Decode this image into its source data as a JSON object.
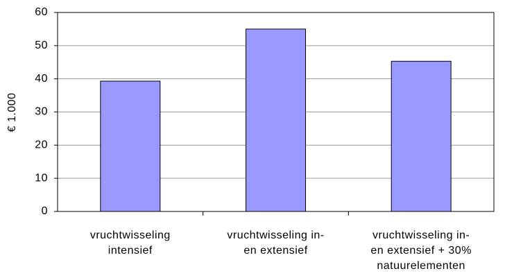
{
  "chart_data": {
    "type": "bar",
    "y_label": "€ 1.000",
    "categories": [
      [
        "vruchtwisseling",
        "intensief"
      ],
      [
        "vruchtwisseling in-",
        "en extensief"
      ],
      [
        "vruchtwisseling in-",
        "en extensief + 30%",
        "natuurelementen"
      ]
    ],
    "values": [
      39.3,
      55,
      45.3
    ],
    "color": "#9999ff",
    "ylim": [
      0,
      60
    ],
    "yticks": [
      0,
      10,
      20,
      30,
      40,
      50,
      60
    ],
    "grid": true
  }
}
